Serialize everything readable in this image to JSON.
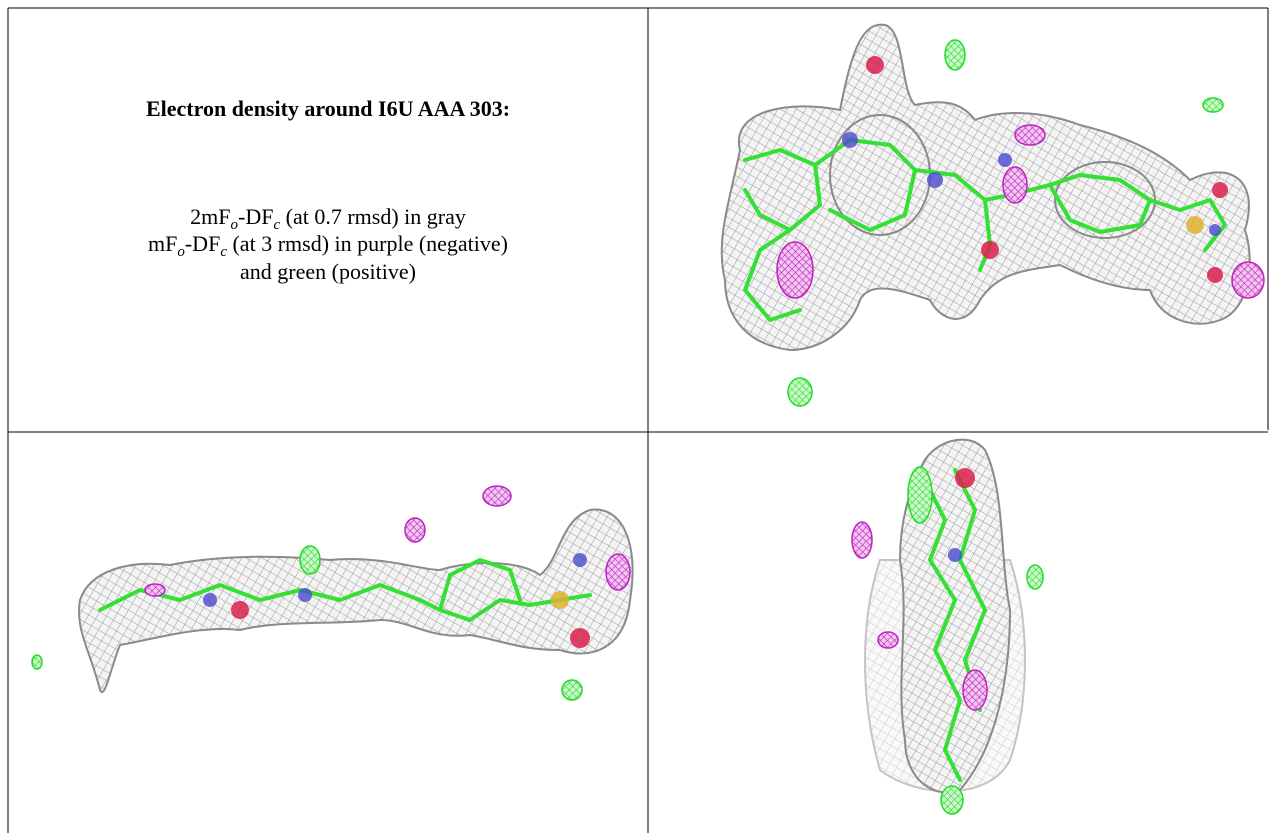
{
  "caption": {
    "title": "Electron density around I6U AAA 303:",
    "lines": [
      [
        "2mF",
        "o",
        "-DF",
        "c",
        " (at 0.7 rmsd) in gray"
      ],
      [
        "mF",
        "o",
        "-DF",
        "c",
        " (at 3 rmsd) in purple (negative)"
      ],
      [
        "and green (positive)"
      ]
    ]
  }
}
